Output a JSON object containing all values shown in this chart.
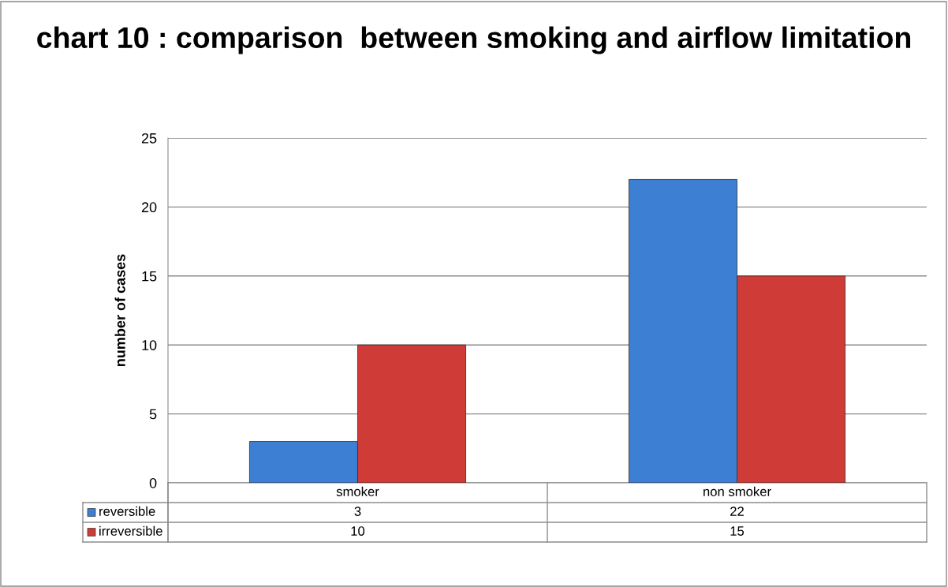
{
  "chart_data": {
    "type": "bar",
    "title": "chart 10 : comparison  between smoking and airflow limitation",
    "ylabel": "number of cases",
    "categories": [
      "smoker",
      "non smoker"
    ],
    "series": [
      {
        "name": "reversible",
        "color": "#3c7fd3",
        "values": [
          3,
          22
        ]
      },
      {
        "name": "irreversible",
        "color": "#cf3b36",
        "values": [
          10,
          15
        ]
      }
    ],
    "ylim": [
      0,
      25
    ],
    "yticks": [
      0,
      5,
      10,
      15,
      20,
      25
    ],
    "grid": "y",
    "data_labels": true,
    "legend": "bottom"
  }
}
